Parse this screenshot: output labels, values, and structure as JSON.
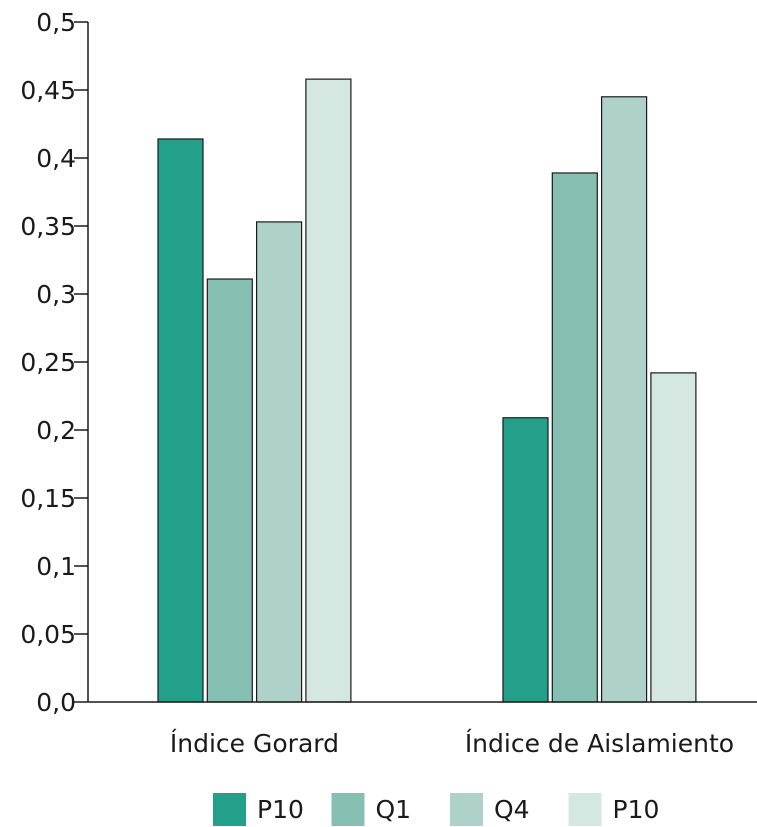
{
  "chart_data": {
    "type": "bar",
    "categories": [
      "Índice Gorard",
      "Índice de Aislamiento"
    ],
    "series": [
      {
        "name": "P10",
        "color": "#22a08a",
        "values": [
          0.414,
          0.209
        ]
      },
      {
        "name": "Q1",
        "color": "#86c0b2",
        "values": [
          0.311,
          0.389
        ]
      },
      {
        "name": "Q4",
        "color": "#aed1c9",
        "values": [
          0.353,
          0.445
        ]
      },
      {
        "name": "P10",
        "color": "#d4e7e1",
        "values": [
          0.458,
          0.242
        ]
      }
    ],
    "ylim": [
      0,
      0.5
    ],
    "yticks": [
      {
        "value": 0,
        "label": "0,0"
      },
      {
        "value": 0.05,
        "label": "0,05"
      },
      {
        "value": 0.1,
        "label": "0,1"
      },
      {
        "value": 0.15,
        "label": "0,15"
      },
      {
        "value": 0.2,
        "label": "0,2"
      },
      {
        "value": 0.25,
        "label": "0,25"
      },
      {
        "value": 0.3,
        "label": "0,3"
      },
      {
        "value": 0.35,
        "label": "0,35"
      },
      {
        "value": 0.4,
        "label": "0,4"
      },
      {
        "value": 0.45,
        "label": "0,45"
      },
      {
        "value": 0.5,
        "label": "0,5"
      }
    ],
    "grid": false,
    "legend_position": "bottom"
  }
}
